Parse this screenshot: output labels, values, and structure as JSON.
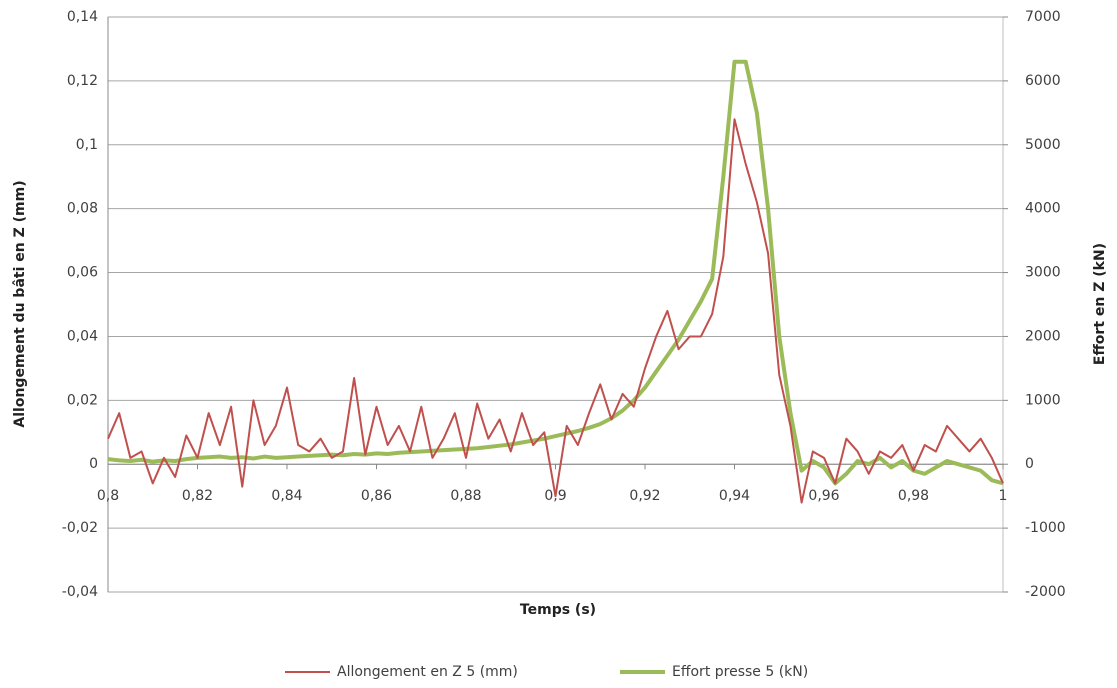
{
  "chart_data": {
    "type": "line",
    "xlabel": "Temps (s)",
    "ylabel": "Allongement du bâti en Z (mm)",
    "y2label": "Effort en Z (kN)",
    "x": [
      0.8,
      0.8025,
      0.805,
      0.8075,
      0.81,
      0.8125,
      0.815,
      0.8175,
      0.82,
      0.8225,
      0.825,
      0.8275,
      0.83,
      0.8325,
      0.835,
      0.8375,
      0.84,
      0.8425,
      0.845,
      0.8475,
      0.85,
      0.8525,
      0.855,
      0.8575,
      0.86,
      0.8625,
      0.865,
      0.8675,
      0.87,
      0.8725,
      0.875,
      0.8775,
      0.88,
      0.8825,
      0.885,
      0.8875,
      0.89,
      0.8925,
      0.895,
      0.8975,
      0.9,
      0.9025,
      0.905,
      0.9075,
      0.91,
      0.9125,
      0.915,
      0.9175,
      0.92,
      0.9225,
      0.925,
      0.9275,
      0.93,
      0.9325,
      0.935,
      0.9375,
      0.94,
      0.9425,
      0.945,
      0.9475,
      0.95,
      0.9525,
      0.955,
      0.9575,
      0.96,
      0.9625,
      0.965,
      0.9675,
      0.97,
      0.9725,
      0.975,
      0.9775,
      0.98,
      0.9825,
      0.985,
      0.9875,
      0.99,
      0.9925,
      0.995,
      0.9975,
      1.0
    ],
    "series": [
      {
        "name": "Allongement en Z 5 (mm)",
        "color": "#c0504d",
        "axis": "y",
        "values": [
          0.008,
          0.016,
          0.002,
          0.004,
          -0.006,
          0.002,
          -0.004,
          0.009,
          0.002,
          0.016,
          0.006,
          0.018,
          -0.007,
          0.02,
          0.006,
          0.012,
          0.024,
          0.006,
          0.004,
          0.008,
          0.002,
          0.004,
          0.027,
          0.003,
          0.018,
          0.006,
          0.012,
          0.004,
          0.018,
          0.002,
          0.008,
          0.016,
          0.002,
          0.019,
          0.008,
          0.014,
          0.004,
          0.016,
          0.006,
          0.01,
          -0.01,
          0.012,
          0.006,
          0.016,
          0.025,
          0.014,
          0.022,
          0.018,
          0.03,
          0.04,
          0.048,
          0.036,
          0.04,
          0.04,
          0.047,
          0.065,
          0.108,
          0.094,
          0.082,
          0.066,
          0.028,
          0.012,
          -0.012,
          0.004,
          0.002,
          -0.006,
          0.008,
          0.004,
          -0.003,
          0.004,
          0.002,
          0.006,
          -0.002,
          0.006,
          0.004,
          0.012,
          0.008,
          0.004,
          0.008,
          0.002,
          -0.006
        ]
      },
      {
        "name": "Effort presse 5 (kN)",
        "color": "#9bbb59",
        "axis": "y2",
        "values": [
          80,
          60,
          50,
          70,
          40,
          60,
          50,
          80,
          100,
          110,
          120,
          100,
          110,
          90,
          120,
          100,
          110,
          120,
          130,
          140,
          150,
          140,
          160,
          150,
          170,
          160,
          180,
          190,
          200,
          210,
          220,
          230,
          240,
          250,
          270,
          290,
          310,
          340,
          370,
          400,
          440,
          480,
          520,
          570,
          630,
          720,
          840,
          1000,
          1200,
          1450,
          1700,
          1950,
          2250,
          2550,
          2900,
          4500,
          6300,
          6300,
          5500,
          4000,
          2000,
          800,
          -100,
          50,
          -50,
          -300,
          -150,
          50,
          0,
          100,
          -50,
          50,
          -100,
          -150,
          -50,
          50,
          0,
          -50,
          -100,
          -250,
          -300
        ]
      }
    ],
    "xlim": [
      0.8,
      1.0
    ],
    "xticks": [
      {
        "value": 0.8,
        "label": "0,8"
      },
      {
        "value": 0.82,
        "label": "0,82"
      },
      {
        "value": 0.84,
        "label": "0,84"
      },
      {
        "value": 0.86,
        "label": "0,86"
      },
      {
        "value": 0.88,
        "label": "0,88"
      },
      {
        "value": 0.9,
        "label": "0,9"
      },
      {
        "value": 0.92,
        "label": "0,92"
      },
      {
        "value": 0.94,
        "label": "0,94"
      },
      {
        "value": 0.96,
        "label": "0,96"
      },
      {
        "value": 0.98,
        "label": "0,98"
      },
      1
    ],
    "ylim": [
      -0.04,
      0.14
    ],
    "yticks": [
      {
        "value": -0.04,
        "label": "-0,04"
      },
      {
        "value": -0.02,
        "label": "-0,02"
      },
      0,
      {
        "value": 0.02,
        "label": "0,02"
      },
      {
        "value": 0.04,
        "label": "0,04"
      },
      {
        "value": 0.06,
        "label": "0,06"
      },
      {
        "value": 0.08,
        "label": "0,08"
      },
      {
        "value": 0.1,
        "label": "0,1"
      },
      {
        "value": 0.12,
        "label": "0,12"
      },
      {
        "value": 0.14,
        "label": "0,14"
      }
    ],
    "y2lim": [
      -2000,
      7000
    ],
    "y2ticks": [
      -2000,
      -1000,
      0,
      1000,
      2000,
      3000,
      4000,
      5000,
      6000,
      7000
    ],
    "grid": true,
    "legend": "bottom"
  }
}
